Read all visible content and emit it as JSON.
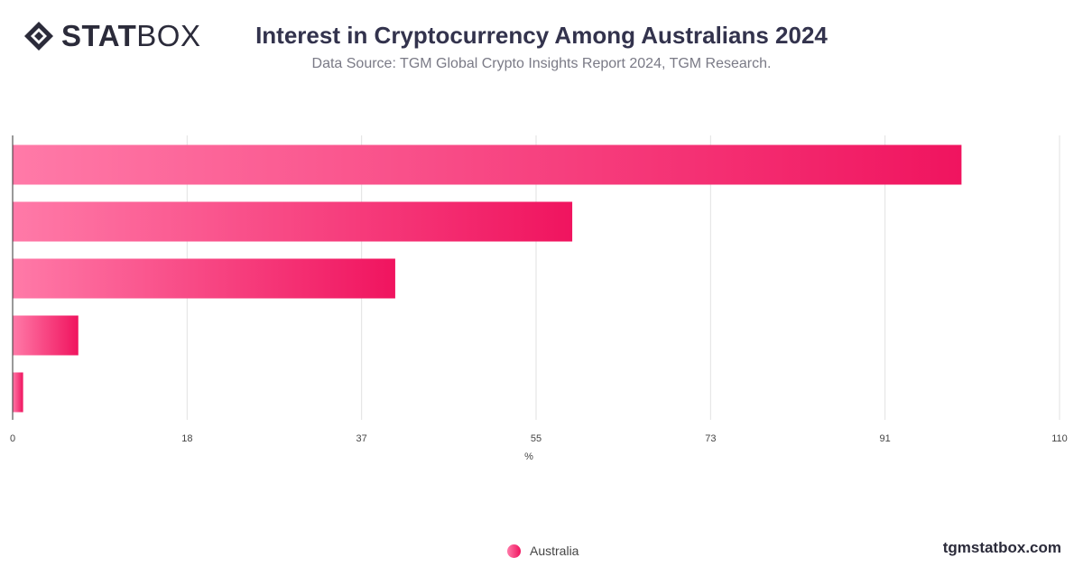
{
  "brand": {
    "logo_bold": "STAT",
    "logo_light": "BOX",
    "logo_icon": "statbox-diamond-icon"
  },
  "header": {
    "title": "Interest in Cryptocurrency Among Australians 2024",
    "subtitle": "Data Source: TGM Global Crypto Insights Report 2024, TGM Research."
  },
  "footer": {
    "site": "tgmstatbox.com"
  },
  "colors": {
    "bar_start": "#ff7aa8",
    "bar_end": "#f0145f",
    "grid": "#e2e2e2",
    "axis": "#333333"
  },
  "chart_data": {
    "type": "bar",
    "orientation": "horizontal",
    "categories": [
      "",
      "",
      "",
      "",
      ""
    ],
    "series": [
      {
        "name": "Australia",
        "values": [
          99.7,
          58.8,
          40.2,
          6.9,
          1.1
        ]
      }
    ],
    "xlabel": "%",
    "xlim": [
      0,
      110
    ],
    "xticks": [
      "0",
      "18",
      "37",
      "55",
      "73",
      "91",
      "110"
    ],
    "grid": true,
    "legend_position": "bottom-center"
  }
}
